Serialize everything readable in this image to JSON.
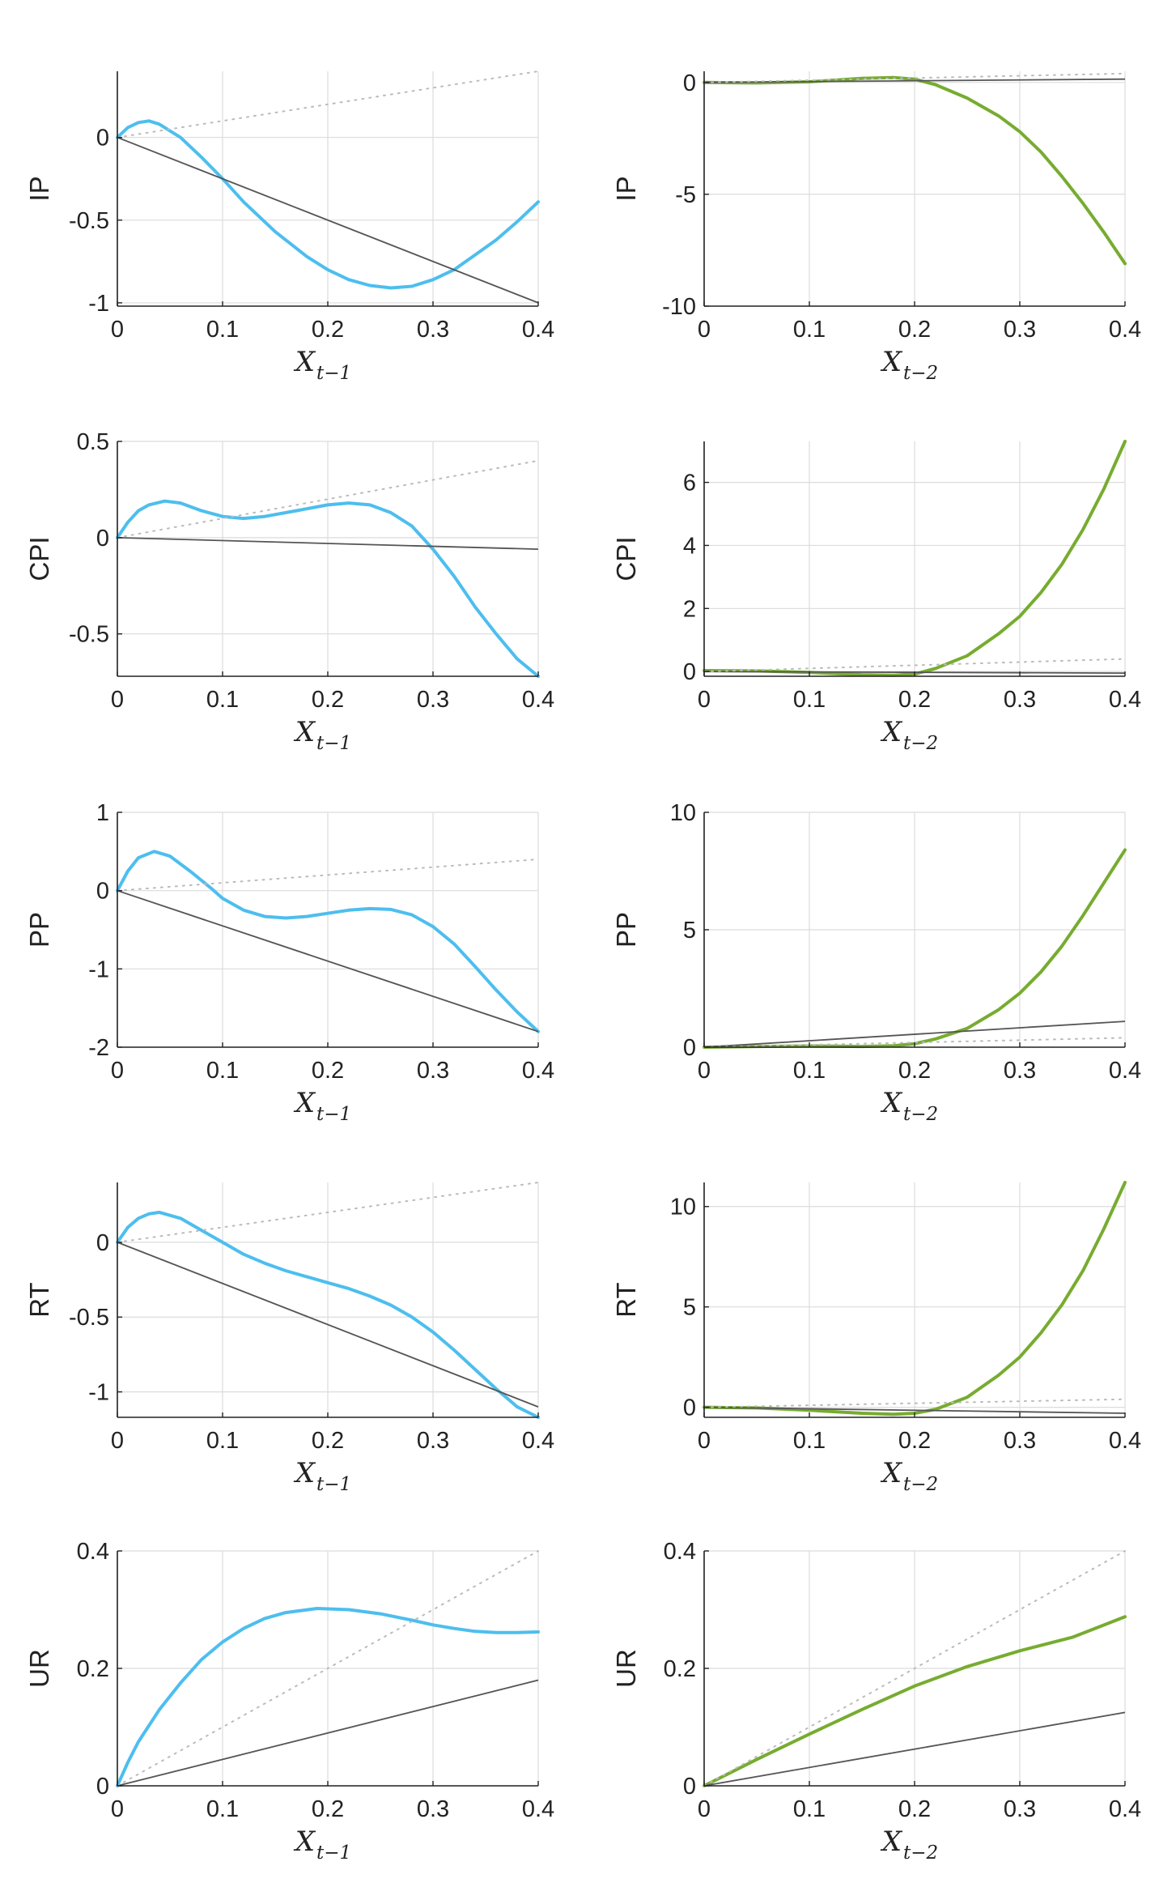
{
  "chart_data": [
    {
      "type": "line",
      "ylabel": "IP",
      "xlabel": "X",
      "xsub": "t−1",
      "xlim": [
        0,
        0.4
      ],
      "ylim": [
        -1.02,
        0.4
      ],
      "xticks": [
        0,
        0.1,
        0.2,
        0.3,
        0.4
      ],
      "xtick_labels": [
        "0",
        "0.1",
        "0.2",
        "0.3",
        "0.4"
      ],
      "yticks": [
        -1,
        -0.5,
        0
      ],
      "ytick_labels": [
        "-1",
        "-0.5",
        "0"
      ],
      "series": [
        {
          "style": "curve",
          "color": "#4DBEEE",
          "x": [
            0,
            0.01,
            0.02,
            0.03,
            0.04,
            0.06,
            0.08,
            0.1,
            0.12,
            0.15,
            0.18,
            0.2,
            0.22,
            0.24,
            0.26,
            0.28,
            0.3,
            0.32,
            0.34,
            0.36,
            0.38,
            0.4
          ],
          "y": [
            0,
            0.06,
            0.09,
            0.1,
            0.08,
            0.0,
            -0.12,
            -0.25,
            -0.39,
            -0.57,
            -0.72,
            -0.8,
            -0.86,
            -0.895,
            -0.91,
            -0.9,
            -0.86,
            -0.8,
            -0.71,
            -0.62,
            -0.51,
            -0.39
          ]
        },
        {
          "style": "solid",
          "color": "#555555",
          "x": [
            0,
            0.4
          ],
          "y": [
            0,
            -1.0
          ]
        },
        {
          "style": "dotted",
          "color": "#bbbbbb",
          "x": [
            0,
            0.4
          ],
          "y": [
            0,
            0.4
          ]
        }
      ]
    },
    {
      "type": "line",
      "ylabel": "IP",
      "xlabel": "X",
      "xsub": "t−2",
      "xlim": [
        0,
        0.4
      ],
      "ylim": [
        -10,
        0.5
      ],
      "xticks": [
        0,
        0.1,
        0.2,
        0.3,
        0.4
      ],
      "xtick_labels": [
        "0",
        "0.1",
        "0.2",
        "0.3",
        "0.4"
      ],
      "yticks": [
        -10,
        -5,
        0
      ],
      "ytick_labels": [
        "-10",
        "-5",
        "0"
      ],
      "series": [
        {
          "style": "curve",
          "color": "#77AC30",
          "x": [
            0,
            0.05,
            0.1,
            0.15,
            0.18,
            0.2,
            0.22,
            0.25,
            0.28,
            0.3,
            0.32,
            0.34,
            0.36,
            0.38,
            0.4
          ],
          "y": [
            0,
            -0.02,
            0.03,
            0.18,
            0.22,
            0.15,
            -0.1,
            -0.7,
            -1.5,
            -2.2,
            -3.1,
            -4.2,
            -5.4,
            -6.7,
            -8.1
          ]
        },
        {
          "style": "solid",
          "color": "#555555",
          "x": [
            0,
            0.4
          ],
          "y": [
            0,
            0.15
          ]
        },
        {
          "style": "dotted",
          "color": "#bbbbbb",
          "x": [
            0,
            0.4
          ],
          "y": [
            0,
            0.4
          ]
        }
      ]
    },
    {
      "type": "line",
      "ylabel": "CPI",
      "xlabel": "X",
      "xsub": "t−1",
      "xlim": [
        0,
        0.4
      ],
      "ylim": [
        -0.72,
        0.5
      ],
      "xticks": [
        0,
        0.1,
        0.2,
        0.3,
        0.4
      ],
      "xtick_labels": [
        "0",
        "0.1",
        "0.2",
        "0.3",
        "0.4"
      ],
      "yticks": [
        -0.5,
        0,
        0.5
      ],
      "ytick_labels": [
        "-0.5",
        "0",
        "0.5"
      ],
      "series": [
        {
          "style": "curve",
          "color": "#4DBEEE",
          "x": [
            0,
            0.01,
            0.02,
            0.03,
            0.045,
            0.06,
            0.08,
            0.1,
            0.12,
            0.14,
            0.17,
            0.2,
            0.22,
            0.24,
            0.26,
            0.28,
            0.3,
            0.32,
            0.34,
            0.36,
            0.38,
            0.4
          ],
          "y": [
            0,
            0.08,
            0.14,
            0.17,
            0.19,
            0.18,
            0.14,
            0.11,
            0.1,
            0.11,
            0.14,
            0.17,
            0.18,
            0.17,
            0.13,
            0.06,
            -0.06,
            -0.2,
            -0.36,
            -0.5,
            -0.63,
            -0.72
          ]
        },
        {
          "style": "solid",
          "color": "#555555",
          "x": [
            0,
            0.4
          ],
          "y": [
            0,
            -0.06
          ]
        },
        {
          "style": "dotted",
          "color": "#bbbbbb",
          "x": [
            0,
            0.4
          ],
          "y": [
            0,
            0.4
          ]
        }
      ]
    },
    {
      "type": "line",
      "ylabel": "CPI",
      "xlabel": "X",
      "xsub": "t−2",
      "xlim": [
        0,
        0.4
      ],
      "ylim": [
        -0.15,
        7.3
      ],
      "xticks": [
        0,
        0.1,
        0.2,
        0.3,
        0.4
      ],
      "xtick_labels": [
        "0",
        "0.1",
        "0.2",
        "0.3",
        "0.4"
      ],
      "yticks": [
        0,
        2,
        4,
        6
      ],
      "ytick_labels": [
        "0",
        "2",
        "4",
        "6"
      ],
      "series": [
        {
          "style": "curve",
          "color": "#77AC30",
          "x": [
            0,
            0.05,
            0.1,
            0.15,
            0.18,
            0.2,
            0.22,
            0.25,
            0.28,
            0.3,
            0.32,
            0.34,
            0.36,
            0.38,
            0.4
          ],
          "y": [
            0.03,
            0.02,
            -0.03,
            -0.1,
            -0.12,
            -0.08,
            0.1,
            0.5,
            1.2,
            1.75,
            2.5,
            3.4,
            4.5,
            5.8,
            7.3
          ]
        },
        {
          "style": "solid",
          "color": "#555555",
          "x": [
            0,
            0.4
          ],
          "y": [
            0,
            -0.05
          ]
        },
        {
          "style": "dotted",
          "color": "#bbbbbb",
          "x": [
            0,
            0.4
          ],
          "y": [
            0,
            0.4
          ]
        }
      ]
    },
    {
      "type": "line",
      "ylabel": "PP",
      "xlabel": "X",
      "xsub": "t−1",
      "xlim": [
        0,
        0.4
      ],
      "ylim": [
        -2,
        1
      ],
      "xticks": [
        0,
        0.1,
        0.2,
        0.3,
        0.4
      ],
      "xtick_labels": [
        "0",
        "0.1",
        "0.2",
        "0.3",
        "0.4"
      ],
      "yticks": [
        -2,
        -1,
        0,
        1
      ],
      "ytick_labels": [
        "-2",
        "-1",
        "0",
        "1"
      ],
      "series": [
        {
          "style": "curve",
          "color": "#4DBEEE",
          "x": [
            0,
            0.01,
            0.02,
            0.035,
            0.05,
            0.07,
            0.09,
            0.1,
            0.12,
            0.14,
            0.16,
            0.18,
            0.2,
            0.22,
            0.24,
            0.26,
            0.28,
            0.3,
            0.32,
            0.34,
            0.36,
            0.38,
            0.4
          ],
          "y": [
            0,
            0.25,
            0.42,
            0.5,
            0.44,
            0.24,
            0.02,
            -0.1,
            -0.25,
            -0.33,
            -0.35,
            -0.33,
            -0.29,
            -0.25,
            -0.23,
            -0.24,
            -0.31,
            -0.46,
            -0.68,
            -0.97,
            -1.27,
            -1.55,
            -1.8
          ]
        },
        {
          "style": "solid",
          "color": "#555555",
          "x": [
            0,
            0.4
          ],
          "y": [
            0,
            -1.8
          ]
        },
        {
          "style": "dotted",
          "color": "#bbbbbb",
          "x": [
            0,
            0.4
          ],
          "y": [
            0,
            0.4
          ]
        }
      ]
    },
    {
      "type": "line",
      "ylabel": "PP",
      "xlabel": "X",
      "xsub": "t−2",
      "xlim": [
        0,
        0.4
      ],
      "ylim": [
        0,
        10
      ],
      "xticks": [
        0,
        0.1,
        0.2,
        0.3,
        0.4
      ],
      "xtick_labels": [
        "0",
        "0.1",
        "0.2",
        "0.3",
        "0.4"
      ],
      "yticks": [
        0,
        5,
        10
      ],
      "ytick_labels": [
        "0",
        "5",
        "10"
      ],
      "series": [
        {
          "style": "curve",
          "color": "#77AC30",
          "x": [
            0,
            0.05,
            0.1,
            0.15,
            0.18,
            0.2,
            0.22,
            0.25,
            0.28,
            0.3,
            0.32,
            0.34,
            0.36,
            0.38,
            0.4
          ],
          "y": [
            0,
            0.03,
            0.05,
            0.03,
            0.06,
            0.15,
            0.35,
            0.8,
            1.6,
            2.3,
            3.2,
            4.3,
            5.6,
            7.0,
            8.4
          ]
        },
        {
          "style": "solid",
          "color": "#555555",
          "x": [
            0,
            0.4
          ],
          "y": [
            0,
            1.1
          ]
        },
        {
          "style": "dotted",
          "color": "#bbbbbb",
          "x": [
            0,
            0.4
          ],
          "y": [
            0,
            0.4
          ]
        }
      ]
    },
    {
      "type": "line",
      "ylabel": "RT",
      "xlabel": "X",
      "xsub": "t−1",
      "xlim": [
        0,
        0.4
      ],
      "ylim": [
        -1.17,
        0.4
      ],
      "xticks": [
        0,
        0.1,
        0.2,
        0.3,
        0.4
      ],
      "xtick_labels": [
        "0",
        "0.1",
        "0.2",
        "0.3",
        "0.4"
      ],
      "yticks": [
        -1,
        -0.5,
        0
      ],
      "ytick_labels": [
        "-1",
        "-0.5",
        "0"
      ],
      "series": [
        {
          "style": "curve",
          "color": "#4DBEEE",
          "x": [
            0,
            0.01,
            0.02,
            0.03,
            0.04,
            0.06,
            0.08,
            0.1,
            0.12,
            0.14,
            0.16,
            0.18,
            0.2,
            0.22,
            0.24,
            0.26,
            0.28,
            0.3,
            0.32,
            0.34,
            0.36,
            0.38,
            0.4
          ],
          "y": [
            0,
            0.1,
            0.16,
            0.19,
            0.2,
            0.16,
            0.08,
            0.0,
            -0.08,
            -0.14,
            -0.19,
            -0.23,
            -0.27,
            -0.31,
            -0.36,
            -0.42,
            -0.5,
            -0.6,
            -0.72,
            -0.85,
            -0.98,
            -1.1,
            -1.17
          ]
        },
        {
          "style": "solid",
          "color": "#555555",
          "x": [
            0,
            0.4
          ],
          "y": [
            0,
            -1.1
          ]
        },
        {
          "style": "dotted",
          "color": "#bbbbbb",
          "x": [
            0,
            0.4
          ],
          "y": [
            0,
            0.4
          ]
        }
      ]
    },
    {
      "type": "line",
      "ylabel": "RT",
      "xlabel": "X",
      "xsub": "t−2",
      "xlim": [
        0,
        0.4
      ],
      "ylim": [
        -0.5,
        11.2
      ],
      "xticks": [
        0,
        0.1,
        0.2,
        0.3,
        0.4
      ],
      "xtick_labels": [
        "0",
        "0.1",
        "0.2",
        "0.3",
        "0.4"
      ],
      "yticks": [
        0,
        5,
        10
      ],
      "ytick_labels": [
        "0",
        "5",
        "10"
      ],
      "series": [
        {
          "style": "curve",
          "color": "#77AC30",
          "x": [
            0,
            0.05,
            0.1,
            0.15,
            0.18,
            0.2,
            0.22,
            0.25,
            0.28,
            0.3,
            0.32,
            0.34,
            0.36,
            0.38,
            0.4
          ],
          "y": [
            0,
            -0.03,
            -0.15,
            -0.3,
            -0.35,
            -0.3,
            -0.1,
            0.5,
            1.6,
            2.5,
            3.7,
            5.1,
            6.8,
            8.9,
            11.2
          ]
        },
        {
          "style": "solid",
          "color": "#555555",
          "x": [
            0,
            0.4
          ],
          "y": [
            0,
            -0.3
          ]
        },
        {
          "style": "dotted",
          "color": "#bbbbbb",
          "x": [
            0,
            0.4
          ],
          "y": [
            0,
            0.4
          ]
        }
      ]
    },
    {
      "type": "line",
      "ylabel": "UR",
      "xlabel": "X",
      "xsub": "t−1",
      "xlim": [
        0,
        0.4
      ],
      "ylim": [
        0,
        0.4
      ],
      "xticks": [
        0,
        0.1,
        0.2,
        0.3,
        0.4
      ],
      "xtick_labels": [
        "0",
        "0.1",
        "0.2",
        "0.3",
        "0.4"
      ],
      "yticks": [
        0,
        0.2,
        0.4
      ],
      "ytick_labels": [
        "0",
        "0.2",
        "0.4"
      ],
      "series": [
        {
          "style": "curve",
          "color": "#4DBEEE",
          "x": [
            0,
            0.01,
            0.02,
            0.04,
            0.06,
            0.08,
            0.1,
            0.12,
            0.14,
            0.16,
            0.19,
            0.22,
            0.25,
            0.28,
            0.3,
            0.32,
            0.34,
            0.36,
            0.38,
            0.4
          ],
          "y": [
            0,
            0.04,
            0.075,
            0.13,
            0.175,
            0.215,
            0.245,
            0.268,
            0.285,
            0.295,
            0.302,
            0.3,
            0.293,
            0.282,
            0.274,
            0.268,
            0.263,
            0.261,
            0.261,
            0.262
          ]
        },
        {
          "style": "solid",
          "color": "#555555",
          "x": [
            0,
            0.4
          ],
          "y": [
            0,
            0.18
          ]
        },
        {
          "style": "dotted",
          "color": "#bbbbbb",
          "x": [
            0,
            0.4
          ],
          "y": [
            0,
            0.4
          ]
        }
      ]
    },
    {
      "type": "line",
      "ylabel": "UR",
      "xlabel": "X",
      "xsub": "t−2",
      "xlim": [
        0,
        0.4
      ],
      "ylim": [
        0,
        0.4
      ],
      "xticks": [
        0,
        0.1,
        0.2,
        0.3,
        0.4
      ],
      "xtick_labels": [
        "0",
        "0.1",
        "0.2",
        "0.3",
        "0.4"
      ],
      "yticks": [
        0,
        0.2,
        0.4
      ],
      "ytick_labels": [
        "0",
        "0.2",
        "0.4"
      ],
      "series": [
        {
          "style": "curve",
          "color": "#77AC30",
          "x": [
            0,
            0.05,
            0.1,
            0.15,
            0.2,
            0.25,
            0.3,
            0.35,
            0.4
          ],
          "y": [
            0,
            0.045,
            0.088,
            0.13,
            0.17,
            0.203,
            0.23,
            0.253,
            0.288
          ]
        },
        {
          "style": "solid",
          "color": "#555555",
          "x": [
            0,
            0.4
          ],
          "y": [
            0,
            0.125
          ]
        },
        {
          "style": "dotted",
          "color": "#bbbbbb",
          "x": [
            0,
            0.4
          ],
          "y": [
            0,
            0.4
          ]
        }
      ]
    }
  ]
}
